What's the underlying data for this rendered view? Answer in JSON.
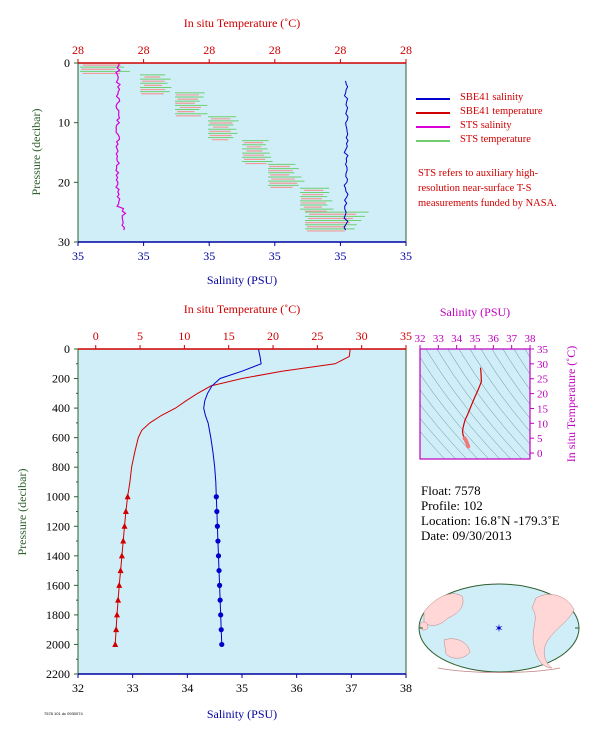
{
  "chart_data": [
    {
      "id": "top",
      "type": "line",
      "title": "",
      "top_axis": {
        "label": "In situ Temperature (˚C)",
        "ticks": [
          "28",
          "28",
          "28",
          "28",
          "28",
          "28"
        ],
        "color": "#d00000"
      },
      "bottom_axis": {
        "label": "Salinity (PSU)",
        "ticks": [
          "35",
          "35",
          "35",
          "35",
          "35",
          "35"
        ],
        "color": "#0000a0"
      },
      "y_axis": {
        "label": "Pressure (decibar)",
        "ticks": [
          0,
          10,
          20,
          30
        ],
        "range": [
          0,
          30
        ],
        "inverted": true,
        "color": "#2f5f2f"
      },
      "series": [
        {
          "name": "SBE41 salinity",
          "color": "#0000cc",
          "style": "line"
        },
        {
          "name": "SBE41 temperature",
          "color": "#d00000",
          "style": "line"
        },
        {
          "name": "STS salinity",
          "color": "#d800d8",
          "style": "line"
        },
        {
          "name": "STS temperature",
          "color": "#6fcf6f",
          "style": "line"
        }
      ],
      "note": "STS refers to auxiliary high-resolution near-surface T-S measurements funded by NASA."
    },
    {
      "id": "main",
      "type": "line",
      "title": "",
      "top_axis": {
        "label": "In situ Temperature (˚C)",
        "ticks": [
          0,
          5,
          10,
          15,
          20,
          25,
          30,
          35
        ],
        "range": [
          -2,
          35
        ],
        "color": "#d00000"
      },
      "bottom_axis": {
        "label": "Salinity (PSU)",
        "ticks": [
          32,
          33,
          34,
          35,
          36,
          37,
          38
        ],
        "range": [
          32,
          38
        ],
        "color": "#0000a0"
      },
      "y_axis": {
        "label": "Pressure (decibar)",
        "ticks": [
          0,
          200,
          400,
          600,
          800,
          1000,
          1200,
          1400,
          1600,
          1800,
          2000,
          2200
        ],
        "range": [
          0,
          2200
        ],
        "inverted": true,
        "color": "#2f5f2f"
      },
      "series": [
        {
          "name": "temperature",
          "color": "#d00000",
          "marker": "triangle",
          "points": [
            [
              0,
              28.7
            ],
            [
              50,
              28.6
            ],
            [
              100,
              27
            ],
            [
              150,
              21
            ],
            [
              200,
              16.5
            ],
            [
              250,
              13
            ],
            [
              300,
              11.5
            ],
            [
              350,
              10.2
            ],
            [
              400,
              9
            ],
            [
              450,
              7.4
            ],
            [
              500,
              6.1
            ],
            [
              550,
              5.2
            ],
            [
              600,
              4.8
            ],
            [
              700,
              4.4
            ],
            [
              800,
              4.05
            ],
            [
              900,
              3.85
            ],
            [
              1000,
              3.6
            ],
            [
              1100,
              3.4
            ],
            [
              1200,
              3.25
            ],
            [
              1300,
              3.1
            ],
            [
              1400,
              2.95
            ],
            [
              1500,
              2.8
            ],
            [
              1600,
              2.65
            ],
            [
              1700,
              2.52
            ],
            [
              1800,
              2.4
            ],
            [
              1900,
              2.3
            ],
            [
              2000,
              2.2
            ]
          ],
          "markers_from": 1000
        },
        {
          "name": "salinity",
          "color": "#0000cc",
          "marker": "circle",
          "points": [
            [
              0,
              35.3
            ],
            [
              50,
              35.33
            ],
            [
              100,
              35.35
            ],
            [
              150,
              35.0
            ],
            [
              200,
              34.6
            ],
            [
              250,
              34.45
            ],
            [
              300,
              34.37
            ],
            [
              350,
              34.32
            ],
            [
              400,
              34.3
            ],
            [
              450,
              34.33
            ],
            [
              500,
              34.38
            ],
            [
              600,
              34.43
            ],
            [
              700,
              34.47
            ],
            [
              800,
              34.5
            ],
            [
              900,
              34.52
            ],
            [
              1000,
              34.53
            ],
            [
              1100,
              34.54
            ],
            [
              1200,
              34.55
            ],
            [
              1300,
              34.56
            ],
            [
              1400,
              34.57
            ],
            [
              1500,
              34.58
            ],
            [
              1600,
              34.59
            ],
            [
              1700,
              34.6
            ],
            [
              1800,
              34.61
            ],
            [
              1900,
              34.62
            ],
            [
              2000,
              34.63
            ]
          ],
          "markers_from": 1000
        }
      ]
    },
    {
      "id": "ts",
      "type": "scatter",
      "title": "",
      "top_axis": {
        "label": "Salinity (PSU)",
        "ticks": [
          32,
          33,
          34,
          35,
          36,
          37,
          38
        ],
        "range": [
          32,
          38
        ],
        "color": "#c000c0"
      },
      "right_axis": {
        "label": "In situ Temperature (˚C)",
        "ticks": [
          0,
          5,
          10,
          15,
          20,
          25,
          30,
          35
        ],
        "range": [
          -2,
          35
        ],
        "color": "#c000c0"
      },
      "series": [
        {
          "name": "ts",
          "color": "#d00000",
          "points": [
            [
              35.3,
              28.7
            ],
            [
              35.33,
              27
            ],
            [
              35.35,
              24
            ],
            [
              35.15,
              21
            ],
            [
              35.0,
              19
            ],
            [
              34.8,
              16
            ],
            [
              34.6,
              13
            ],
            [
              34.45,
              11
            ],
            [
              34.37,
              9
            ],
            [
              34.32,
              7.4
            ],
            [
              34.35,
              6
            ],
            [
              34.43,
              5
            ],
            [
              34.5,
              4.3
            ],
            [
              34.55,
              3.6
            ],
            [
              34.6,
              2.8
            ],
            [
              34.63,
              2.2
            ]
          ]
        }
      ]
    }
  ],
  "float_info": {
    "float": "Float:  7578",
    "profile": "Profile:  102",
    "location": "Location:  16.8˚N  -179.3˚E",
    "date": "Date:  09/30/2013"
  },
  "footer_id": "7578 101 dc 0930074",
  "colors": {
    "plot_bg": "#cfeef8",
    "axis_green": "#2f5f2f",
    "red": "#d00000",
    "blue": "#0000a0",
    "magenta": "#c000c0"
  }
}
